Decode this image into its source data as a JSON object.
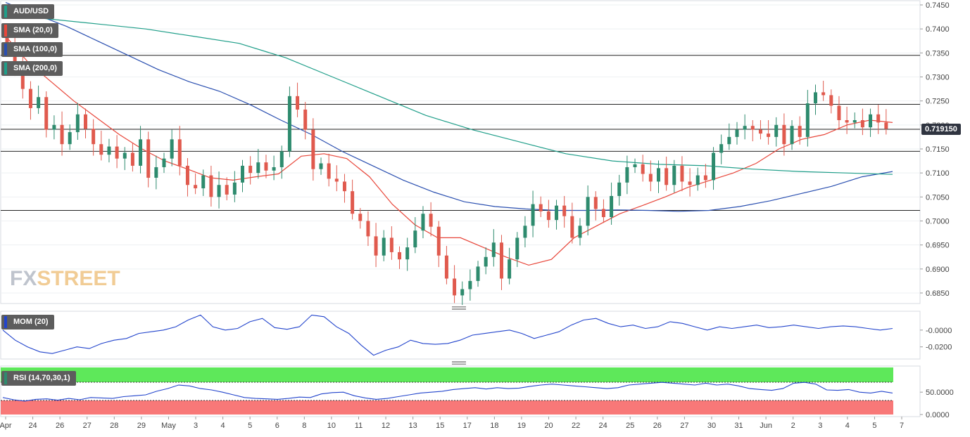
{
  "legend": {
    "symbol": "AUD/USD",
    "sma20": "SMA (20,0)",
    "sma100": "SMA (100,0)",
    "sma200": "SMA (200,0)",
    "mom": "MOM (20)",
    "rsi": "RSI (14,70,30,1)"
  },
  "watermark": {
    "fx": "FX",
    "street": "STREET"
  },
  "colors": {
    "bull": "#2e8b6e",
    "bear": "#e05a4e",
    "sma20": "#e8463a",
    "sma100": "#2a4fb0",
    "sma200": "#1f9e89",
    "mom": "#2244cc",
    "rsi": "#2244cc",
    "rsi_overbought_zone": "#5ee85a",
    "rsi_oversold_zone": "#f87878",
    "price_badge_bg": "#2f3440"
  },
  "chart_data": [
    {
      "type": "candlestick",
      "pair": "AUD/USD",
      "last_price": "0.719150",
      "ylim": [
        0.6825,
        0.746
      ],
      "y_ticks": [
        "0.7450",
        "0.7400",
        "0.7350",
        "0.7300",
        "0.7250",
        "0.7200",
        "0.7150",
        "0.7100",
        "0.7050",
        "0.7000",
        "0.6950",
        "0.6900",
        "0.6850"
      ],
      "x_labels": [
        "Apr",
        "24",
        "26",
        "27",
        "28",
        "29",
        "May",
        "3",
        "4",
        "5",
        "6",
        "8",
        "10",
        "11",
        "12",
        "13",
        "15",
        "17",
        "18",
        "19",
        "20",
        "22",
        "24",
        "25",
        "26",
        "27",
        "30",
        "31",
        "Jun",
        "2",
        "3",
        "4",
        "5",
        "7"
      ],
      "horizontal_levels": [
        0.7345,
        0.7243,
        0.7191,
        0.7145,
        0.7022
      ],
      "series": [
        {
          "name": "SMA (20,0)",
          "y": [
            0.7385,
            0.733,
            0.729,
            0.725,
            0.7215,
            0.718,
            0.715,
            0.7125,
            0.7108,
            0.709,
            0.7085,
            0.7092,
            0.7098,
            0.7135,
            0.714,
            0.713,
            0.7092,
            0.7035,
            0.6992,
            0.6965,
            0.6965,
            0.6945,
            0.6925,
            0.6908,
            0.692,
            0.6965,
            0.699,
            0.7015,
            0.7032,
            0.705,
            0.707,
            0.7085,
            0.71,
            0.712,
            0.715,
            0.717,
            0.718,
            0.72,
            0.721,
            0.7205
          ]
        },
        {
          "name": "SMA (100,0)",
          "y": [
            0.7455,
            0.743,
            0.7405,
            0.7375,
            0.7345,
            0.7315,
            0.729,
            0.727,
            0.7242,
            0.721,
            0.718,
            0.7145,
            0.7115,
            0.7085,
            0.706,
            0.704,
            0.703,
            0.7025,
            0.7022,
            0.7022,
            0.7023,
            0.7022,
            0.702,
            0.7022,
            0.703,
            0.7042,
            0.7057,
            0.7072,
            0.7092,
            0.7103
          ]
        },
        {
          "name": "SMA (200,0)",
          "y": [
            0.743,
            0.742,
            0.741,
            0.74,
            0.7385,
            0.737,
            0.734,
            0.73,
            0.726,
            0.722,
            0.719,
            0.7165,
            0.714,
            0.7125,
            0.7118,
            0.7115,
            0.7108,
            0.7103,
            0.71,
            0.7097
          ]
        }
      ],
      "candles": [
        [
          0.7385,
          0.7372
        ],
        [
          0.7372,
          0.7318
        ],
        [
          0.7318,
          0.7275
        ],
        [
          0.7275,
          0.7235
        ],
        [
          0.7235,
          0.7258
        ],
        [
          0.7258,
          0.719
        ],
        [
          0.719,
          0.72
        ],
        [
          0.72,
          0.716
        ],
        [
          0.716,
          0.7185
        ],
        [
          0.7185,
          0.7222
        ],
        [
          0.7222,
          0.7192
        ],
        [
          0.7192,
          0.716
        ],
        [
          0.716,
          0.7138
        ],
        [
          0.7138,
          0.7155
        ],
        [
          0.7155,
          0.713
        ],
        [
          0.713,
          0.7142
        ],
        [
          0.7142,
          0.7115
        ],
        [
          0.7115,
          0.717
        ],
        [
          0.717,
          0.709
        ],
        [
          0.709,
          0.7112
        ],
        [
          0.7112,
          0.713
        ],
        [
          0.713,
          0.717
        ],
        [
          0.717,
          0.7115
        ],
        [
          0.7115,
          0.7075
        ],
        [
          0.7075,
          0.7068
        ],
        [
          0.7068,
          0.7095
        ],
        [
          0.7095,
          0.705
        ],
        [
          0.705,
          0.7075
        ],
        [
          0.7075,
          0.7055
        ],
        [
          0.7055,
          0.708
        ],
        [
          0.708,
          0.7115
        ],
        [
          0.7115,
          0.71
        ],
        [
          0.71,
          0.7122
        ],
        [
          0.7122,
          0.7105
        ],
        [
          0.7105,
          0.7112
        ],
        [
          0.7112,
          0.7145
        ],
        [
          0.7145,
          0.726
        ],
        [
          0.726,
          0.7232
        ],
        [
          0.7232,
          0.719
        ],
        [
          0.719,
          0.7108
        ],
        [
          0.7108,
          0.712
        ],
        [
          0.712,
          0.7088
        ],
        [
          0.7088,
          0.7082
        ],
        [
          0.7082,
          0.7062
        ],
        [
          0.7062,
          0.7015
        ],
        [
          0.7015,
          0.7
        ],
        [
          0.7,
          0.6968
        ],
        [
          0.6968,
          0.6928
        ],
        [
          0.6928,
          0.6965
        ],
        [
          0.6965,
          0.6935
        ],
        [
          0.6935,
          0.692
        ],
        [
          0.692,
          0.6945
        ],
        [
          0.6945,
          0.698
        ],
        [
          0.698,
          0.7015
        ],
        [
          0.7015,
          0.6988
        ],
        [
          0.6988,
          0.6928
        ],
        [
          0.6928,
          0.688
        ],
        [
          0.688,
          0.6845
        ],
        [
          0.6845,
          0.6858
        ],
        [
          0.6858,
          0.6875
        ],
        [
          0.6875,
          0.6905
        ],
        [
          0.6905,
          0.6925
        ],
        [
          0.6925,
          0.6955
        ],
        [
          0.6955,
          0.688
        ],
        [
          0.688,
          0.692
        ],
        [
          0.692,
          0.6965
        ],
        [
          0.6965,
          0.699
        ],
        [
          0.699,
          0.7035
        ],
        [
          0.7035,
          0.702
        ],
        [
          0.702,
          0.7002
        ],
        [
          0.7002,
          0.7032
        ],
        [
          0.7032,
          0.701
        ],
        [
          0.701,
          0.6965
        ],
        [
          0.6965,
          0.699
        ],
        [
          0.699,
          0.705
        ],
        [
          0.705,
          0.7025
        ],
        [
          0.7025,
          0.7008
        ],
        [
          0.7008,
          0.7052
        ],
        [
          0.7052,
          0.708
        ],
        [
          0.708,
          0.7112
        ],
        [
          0.7112,
          0.7118
        ],
        [
          0.7118,
          0.7098
        ],
        [
          0.7098,
          0.7082
        ],
        [
          0.7082,
          0.711
        ],
        [
          0.711,
          0.7075
        ],
        [
          0.7075,
          0.7115
        ],
        [
          0.7115,
          0.7082
        ],
        [
          0.7082,
          0.7075
        ],
        [
          0.7075,
          0.7095
        ],
        [
          0.7095,
          0.7085
        ],
        [
          0.7085,
          0.7142
        ],
        [
          0.7142,
          0.716
        ],
        [
          0.716,
          0.7175
        ],
        [
          0.7175,
          0.719
        ],
        [
          0.719,
          0.7198
        ],
        [
          0.7198,
          0.719
        ],
        [
          0.719,
          0.7182
        ],
        [
          0.7182,
          0.7175
        ],
        [
          0.7175,
          0.72
        ],
        [
          0.72,
          0.716
        ],
        [
          0.716,
          0.7198
        ],
        [
          0.7198,
          0.7175
        ],
        [
          0.7175,
          0.7245
        ],
        [
          0.7245,
          0.7268
        ],
        [
          0.7268,
          0.7262
        ],
        [
          0.7262,
          0.724
        ],
        [
          0.724,
          0.721
        ],
        [
          0.721,
          0.7205
        ],
        [
          0.7205,
          0.721
        ],
        [
          0.721,
          0.7195
        ],
        [
          0.7195,
          0.7222
        ],
        [
          0.7222,
          0.7205
        ],
        [
          0.7205,
          0.7192
        ]
      ]
    },
    {
      "type": "line",
      "name": "MOM (20)",
      "y_ticks": [
        "-0.0000",
        "-0.0200"
      ],
      "ylim": [
        -0.032,
        0.02
      ],
      "y": [
        0.0,
        -0.012,
        -0.02,
        -0.026,
        -0.028,
        -0.024,
        -0.02,
        -0.022,
        -0.016,
        -0.012,
        -0.01,
        -0.004,
        -0.002,
        0.0,
        0.004,
        0.012,
        0.018,
        0.004,
        0.0,
        0.002,
        0.01,
        0.014,
        0.003,
        0.001,
        0.004,
        0.018,
        0.016,
        0.004,
        -0.004,
        -0.018,
        -0.03,
        -0.024,
        -0.02,
        -0.012,
        -0.016,
        -0.017,
        -0.016,
        -0.012,
        -0.006,
        -0.004,
        -0.002,
        0.0,
        -0.004,
        -0.01,
        -0.006,
        -0.002,
        0.006,
        0.012,
        0.014,
        0.008,
        0.004,
        0.006,
        0.002,
        0.004,
        0.01,
        0.008,
        0.004,
        0.0,
        0.004,
        0.002,
        0.004,
        0.006,
        0.003,
        0.004,
        0.006,
        0.004,
        0.002,
        0.004,
        0.005,
        0.004,
        0.002,
        0.0,
        0.002
      ]
    },
    {
      "type": "line",
      "name": "RSI (14,70,30,1)",
      "y_ticks": [
        "50.0000",
        "0.0000"
      ],
      "ylim": [
        0,
        100
      ],
      "levels": [
        70,
        30
      ],
      "y": [
        38,
        33,
        30,
        34,
        35,
        32,
        36,
        33,
        38,
        37,
        36,
        40,
        42,
        44,
        52,
        58,
        66,
        64,
        58,
        55,
        50,
        44,
        38,
        36,
        35,
        34,
        36,
        39,
        38,
        46,
        49,
        50,
        42,
        37,
        34,
        36,
        40,
        44,
        48,
        50,
        52,
        56,
        58,
        60,
        57,
        60,
        58,
        59,
        63,
        66,
        68,
        66,
        64,
        62,
        60,
        58,
        60,
        66,
        68,
        70,
        72,
        70,
        68,
        66,
        70,
        66,
        68,
        64,
        58,
        56,
        54,
        58,
        70,
        72,
        68,
        55,
        54,
        56,
        50,
        48,
        52,
        48
      ]
    }
  ]
}
